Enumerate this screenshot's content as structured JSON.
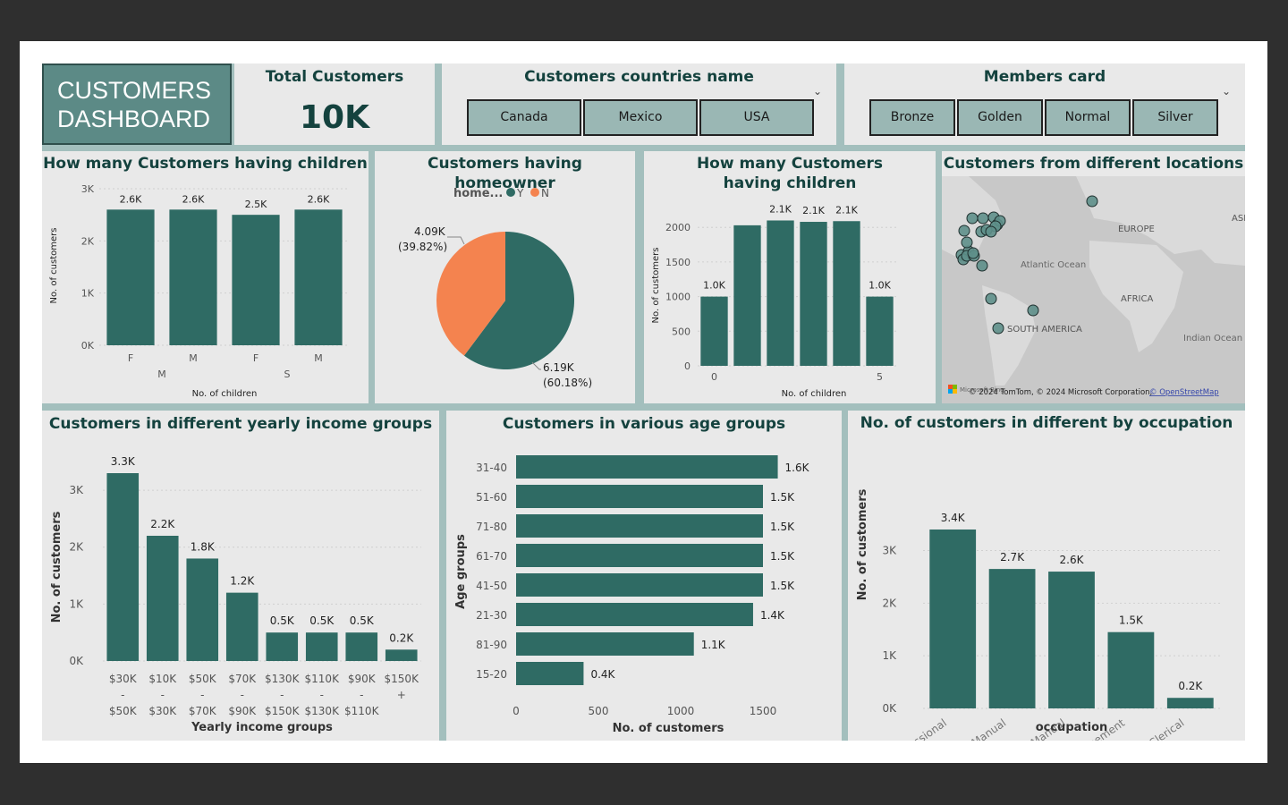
{
  "header": {
    "logo_line1": "CUSTOMERS",
    "logo_line2": "DASHBOARD"
  },
  "kpi": {
    "title": "Total Customers",
    "value": "10K"
  },
  "countries_slicer": {
    "title": "Customers countries name",
    "options": [
      "Canada",
      "Mexico",
      "USA"
    ]
  },
  "members_slicer": {
    "title": "Members card",
    "options": [
      "Bronze",
      "Golden",
      "Normal",
      "Silver"
    ]
  },
  "colors": {
    "bar": "#2f6b64",
    "pie_n": "#f4834f",
    "accent": "#14423e",
    "bg_panel": "#e9e9e9",
    "border": "#a3bfbd"
  },
  "map": {
    "title": "Customers from different locations",
    "labels": [
      "EUROPE",
      "ASI",
      "Atlantic Ocean",
      "AFRICA",
      "SOUTH AMERICA",
      "Indian Ocean"
    ],
    "attribution": "© 2024 TomTom, © 2024 Microsoft Corporation,",
    "osm_link": "© OpenStreetMap",
    "ms_logo_text": "Microsoft Bing"
  },
  "chart_data": [
    {
      "id": "children_gender",
      "type": "bar",
      "title": "How many Customers having children",
      "xlabel": "No. of children",
      "ylabel": "No. of customers",
      "categories": [
        "F",
        "M",
        "F",
        "M"
      ],
      "groups": [
        "M",
        "S"
      ],
      "values": [
        2600,
        2600,
        2500,
        2600
      ],
      "data_labels": [
        "2.6K",
        "2.6K",
        "2.5K",
        "2.6K"
      ],
      "yticks": [
        "0K",
        "1K",
        "2K",
        "3K"
      ],
      "ylim": [
        0,
        3000
      ]
    },
    {
      "id": "homeowner",
      "type": "pie",
      "title": "Customers having homeowner",
      "legend_title": "home...",
      "slices": [
        {
          "name": "Y",
          "value": 6190,
          "label": "6.19K",
          "pct": "(60.18%)"
        },
        {
          "name": "N",
          "value": 4090,
          "label": "4.09K",
          "pct": "(39.82%)"
        }
      ]
    },
    {
      "id": "children_count",
      "type": "bar",
      "title": "How many Customers having children",
      "xlabel": "No. of children",
      "ylabel": "No. of customers",
      "x": [
        0,
        1,
        2,
        3,
        4,
        5
      ],
      "values": [
        1000,
        2030,
        2100,
        2080,
        2090,
        1000
      ],
      "data_labels": [
        "1.0K",
        "",
        "2.1K",
        "2.1K",
        "2.1K",
        "1.0K"
      ],
      "xtick_labels": [
        "0",
        "",
        "",
        "",
        "",
        "5"
      ],
      "yticks": [
        "0",
        "500",
        "1000",
        "1500",
        "2000"
      ],
      "ylim": [
        0,
        2300
      ]
    },
    {
      "id": "income",
      "type": "bar",
      "title": "Customers in different yearly income groups",
      "xlabel": "Yearly income groups",
      "ylabel": "No. of customers",
      "categories": [
        "$30K - $50K",
        "$10K - $30K",
        "$50K - $70K",
        "$70K - $90K",
        "$130K - $150K",
        "$110K - $130K",
        "$90K - $110K",
        "$150K +"
      ],
      "cat_lines": [
        [
          "$30K",
          "-",
          "$50K"
        ],
        [
          "$10K",
          "-",
          "$30K"
        ],
        [
          "$50K",
          "-",
          "$70K"
        ],
        [
          "$70K",
          "-",
          "$90K"
        ],
        [
          "$130K",
          "-",
          "$150K"
        ],
        [
          "$110K",
          "-",
          "$130K"
        ],
        [
          "$90K",
          "-",
          "$110K"
        ],
        [
          "$150K",
          "+"
        ]
      ],
      "values": [
        3300,
        2200,
        1800,
        1200,
        500,
        500,
        500,
        200
      ],
      "data_labels": [
        "3.3K",
        "2.2K",
        "1.8K",
        "1.2K",
        "0.5K",
        "0.5K",
        "0.5K",
        "0.2K"
      ],
      "yticks": [
        "0K",
        "1K",
        "2K",
        "3K"
      ],
      "ylim": [
        0,
        3300
      ]
    },
    {
      "id": "age",
      "type": "bar",
      "orientation": "horizontal",
      "title": "Customers in various age groups",
      "xlabel": "No. of customers",
      "ylabel": "Age groups",
      "categories": [
        "31-40",
        "51-60",
        "71-80",
        "61-70",
        "41-50",
        "21-30",
        "81-90",
        "15-20"
      ],
      "values": [
        1590,
        1500,
        1500,
        1500,
        1500,
        1440,
        1080,
        410
      ],
      "data_labels": [
        "1.6K",
        "1.5K",
        "1.5K",
        "1.5K",
        "1.5K",
        "1.4K",
        "1.1K",
        "0.4K"
      ],
      "xticks": [
        "0",
        "500",
        "1000",
        "1500"
      ],
      "xlim": [
        0,
        1750
      ]
    },
    {
      "id": "occupation",
      "type": "bar",
      "title": "No. of customers in different by occupation",
      "xlabel": "occupation",
      "ylabel": "No. of customers",
      "categories": [
        "Professional",
        "Skilled Manual",
        "Manual",
        "Management",
        "Clerical"
      ],
      "values": [
        3400,
        2650,
        2600,
        1450,
        200
      ],
      "data_labels": [
        "3.4K",
        "2.7K",
        "2.6K",
        "1.5K",
        "0.2K"
      ],
      "yticks": [
        "0K",
        "1K",
        "2K",
        "3K"
      ],
      "ylim": [
        0,
        3400
      ]
    }
  ]
}
